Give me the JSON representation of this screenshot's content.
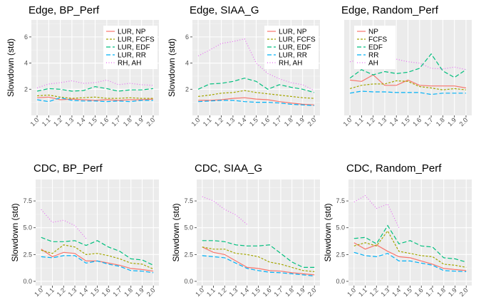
{
  "chart_data": [
    {
      "type": "line",
      "title": "Edge, BP_Perf",
      "ylabel": "Slowdown (std)",
      "xlabel": "",
      "x": [
        1.0,
        1.1,
        1.2,
        1.3,
        1.4,
        1.5,
        1.6,
        1.7,
        1.8,
        1.9,
        2.0
      ],
      "xticks": [
        "1.0",
        "1.1",
        "1.2",
        "1.3",
        "1.4",
        "1.5",
        "1.6",
        "1.7",
        "1.8",
        "1.9",
        "2.0"
      ],
      "ylim": [
        0,
        7.3
      ],
      "yticks": [
        2,
        4,
        6
      ],
      "legend": "top-right",
      "series": [
        {
          "name": "LUR, NP",
          "color": "#F8766D",
          "dash": "solid",
          "values": [
            1.35,
            1.4,
            1.2,
            1.25,
            1.2,
            1.15,
            1.2,
            1.15,
            1.2,
            1.2,
            1.25
          ]
        },
        {
          "name": "LUR, FCFS",
          "color": "#A3A500",
          "dash": "dashed",
          "values": [
            1.5,
            1.55,
            1.4,
            1.3,
            1.35,
            1.4,
            1.3,
            1.3,
            1.35,
            1.3,
            1.3
          ]
        },
        {
          "name": "LUR, EDF",
          "color": "#00BF7D",
          "dash": "longdash",
          "values": [
            1.85,
            2.05,
            2.0,
            1.85,
            1.9,
            2.2,
            2.05,
            1.85,
            1.95,
            1.95,
            2.05
          ]
        },
        {
          "name": "LUR, RR",
          "color": "#00B0F6",
          "dash": "longdash",
          "values": [
            1.2,
            1.05,
            1.35,
            1.15,
            1.1,
            1.1,
            1.05,
            1.1,
            1.05,
            1.15,
            1.15
          ]
        },
        {
          "name": "RH, AH",
          "color": "#E76BF3",
          "dash": "dotted",
          "values": [
            2.1,
            2.4,
            2.5,
            2.65,
            2.45,
            2.5,
            2.7,
            2.35,
            2.45,
            2.35,
            2.3
          ]
        }
      ]
    },
    {
      "type": "line",
      "title": "Edge, SIAA_G",
      "ylabel": "Slowdown (std)",
      "xlabel": "",
      "x": [
        1.0,
        1.1,
        1.2,
        1.3,
        1.4,
        1.5,
        1.6,
        1.7,
        1.8,
        1.9,
        2.0
      ],
      "xticks": [
        "1.0",
        "1.1",
        "1.2",
        "1.3",
        "1.4",
        "1.5",
        "1.6",
        "1.7",
        "1.8",
        "1.9",
        "2.0"
      ],
      "ylim": [
        0,
        7.3
      ],
      "yticks": [
        2,
        4,
        6
      ],
      "legend": "top-right",
      "series": [
        {
          "name": "LUR, NP",
          "color": "#F8766D",
          "dash": "solid",
          "values": [
            1.15,
            1.15,
            1.2,
            1.3,
            1.35,
            1.25,
            1.2,
            1.05,
            0.95,
            0.85,
            0.8
          ]
        },
        {
          "name": "LUR, FCFS",
          "color": "#A3A500",
          "dash": "dashed",
          "values": [
            1.45,
            1.55,
            1.7,
            1.75,
            1.9,
            1.75,
            1.65,
            1.55,
            1.45,
            1.35,
            1.3
          ]
        },
        {
          "name": "LUR, EDF",
          "color": "#00BF7D",
          "dash": "longdash",
          "values": [
            2.0,
            2.4,
            2.45,
            2.6,
            2.85,
            2.6,
            2.0,
            2.35,
            2.15,
            2.0,
            1.75
          ]
        },
        {
          "name": "LUR, RR",
          "color": "#00B0F6",
          "dash": "longdash",
          "values": [
            1.05,
            1.1,
            1.15,
            1.15,
            1.05,
            1.0,
            1.0,
            0.95,
            0.85,
            0.8,
            0.75
          ]
        },
        {
          "name": "RH, AH",
          "color": "#E76BF3",
          "dash": "dotted",
          "values": [
            4.55,
            5.0,
            5.5,
            5.65,
            5.85,
            4.0,
            3.2,
            2.8,
            2.5,
            2.35,
            1.9
          ]
        }
      ]
    },
    {
      "type": "line",
      "title": "Edge, Random_Perf",
      "ylabel": "",
      "xlabel": "",
      "x": [
        1.0,
        1.1,
        1.2,
        1.3,
        1.4,
        1.5,
        1.6,
        1.7,
        1.8,
        1.9,
        2.0
      ],
      "xticks": [
        "1.0",
        "1.1",
        "1.2",
        "1.3",
        "1.4",
        "1.5",
        "1.6",
        "1.7",
        "1.8",
        "1.9",
        "2.0"
      ],
      "ylim": [
        0,
        7.3
      ],
      "yticks": [],
      "legend": "top-left",
      "series": [
        {
          "name": "NP",
          "color": "#F8766D",
          "dash": "solid",
          "values": [
            2.7,
            2.6,
            3.1,
            2.3,
            2.3,
            2.7,
            2.3,
            2.25,
            2.25,
            2.25,
            2.1
          ]
        },
        {
          "name": "FCFS",
          "color": "#A3A500",
          "dash": "dashed",
          "values": [
            2.05,
            2.3,
            2.4,
            2.4,
            2.65,
            2.6,
            2.2,
            2.1,
            1.95,
            2.05,
            1.95
          ]
        },
        {
          "name": "EDF",
          "color": "#00BF7D",
          "dash": "longdash",
          "values": [
            2.85,
            3.5,
            3.1,
            3.35,
            3.2,
            3.3,
            3.6,
            4.7,
            3.4,
            2.9,
            3.5
          ]
        },
        {
          "name": "RR",
          "color": "#00B0F6",
          "dash": "longdash",
          "values": [
            1.7,
            1.85,
            1.8,
            1.8,
            1.75,
            1.75,
            1.75,
            1.6,
            1.7,
            1.7,
            1.7
          ]
        },
        {
          "name": "AH",
          "color": "#E76BF3",
          "dash": "dotted",
          "values": [
            4.1,
            4.3,
            4.5,
            4.5,
            4.3,
            4.1,
            4.0,
            3.6,
            3.55,
            3.7,
            3.5
          ]
        }
      ]
    },
    {
      "type": "line",
      "title": "CDC, BP_Perf",
      "ylabel": "Slowdown (std)",
      "xlabel": "",
      "x": [
        1.0,
        1.1,
        1.2,
        1.3,
        1.4,
        1.5,
        1.6,
        1.7,
        1.8,
        1.9,
        2.0
      ],
      "xticks": [
        "1.0",
        "1.1",
        "1.2",
        "1.3",
        "1.4",
        "1.5",
        "1.6",
        "1.7",
        "1.8",
        "1.9",
        "2.0"
      ],
      "ylim": [
        -0.4,
        9.5
      ],
      "yticks": [
        0.0,
        2.5,
        5.0,
        7.5
      ],
      "ytick_labels": [
        "0.0",
        "2.5",
        "5.0",
        "7.5"
      ],
      "legend": "none",
      "series": [
        {
          "name": "LUR, NP",
          "color": "#F8766D",
          "dash": "solid",
          "values": [
            3.0,
            2.3,
            2.7,
            2.6,
            1.9,
            1.9,
            1.7,
            1.5,
            1.2,
            1.1,
            0.95
          ]
        },
        {
          "name": "LUR, FCFS",
          "color": "#A3A500",
          "dash": "dashed",
          "values": [
            2.9,
            2.6,
            3.4,
            3.2,
            2.5,
            2.6,
            2.4,
            2.1,
            1.7,
            1.6,
            1.15
          ]
        },
        {
          "name": "LUR, EDF",
          "color": "#00BF7D",
          "dash": "longdash",
          "values": [
            4.1,
            3.7,
            3.7,
            3.8,
            3.35,
            3.8,
            3.2,
            2.8,
            2.1,
            2.0,
            1.5
          ]
        },
        {
          "name": "LUR, RR",
          "color": "#00B0F6",
          "dash": "longdash",
          "values": [
            2.3,
            2.2,
            2.4,
            2.4,
            1.7,
            1.9,
            1.6,
            1.4,
            1.0,
            0.95,
            0.8
          ]
        },
        {
          "name": "RH, AH",
          "color": "#E76BF3",
          "dash": "dotted",
          "values": [
            6.7,
            5.5,
            5.7,
            5.2,
            4.0,
            null,
            null,
            null,
            null,
            null,
            null
          ]
        }
      ]
    },
    {
      "type": "line",
      "title": "CDC, SIAA_G",
      "ylabel": "Slowdown (std)",
      "xlabel": "",
      "x": [
        1.0,
        1.1,
        1.2,
        1.3,
        1.4,
        1.5,
        1.6,
        1.7,
        1.8,
        1.9,
        2.0
      ],
      "xticks": [
        "1.0",
        "1.1",
        "1.2",
        "1.3",
        "1.4",
        "1.5",
        "1.6",
        "1.7",
        "1.8",
        "1.9",
        "2.0"
      ],
      "ylim": [
        -0.4,
        9.5
      ],
      "yticks": [
        0.0,
        2.5,
        5.0,
        7.5
      ],
      "ytick_labels": [
        "0.0",
        "2.5",
        "5.0",
        "7.5"
      ],
      "legend": "none",
      "series": [
        {
          "name": "LUR, NP",
          "color": "#F8766D",
          "dash": "solid",
          "values": [
            3.2,
            2.7,
            2.5,
            1.9,
            1.3,
            1.2,
            1.0,
            0.95,
            0.8,
            0.7,
            0.6
          ]
        },
        {
          "name": "LUR, FCFS",
          "color": "#A3A500",
          "dash": "dashed",
          "values": [
            3.2,
            3.0,
            3.0,
            2.6,
            2.5,
            2.3,
            1.8,
            1.6,
            1.3,
            1.0,
            0.9
          ]
        },
        {
          "name": "LUR, EDF",
          "color": "#00BF7D",
          "dash": "longdash",
          "values": [
            3.8,
            3.8,
            3.7,
            3.4,
            3.3,
            3.3,
            3.4,
            2.6,
            1.8,
            1.3,
            1.3
          ]
        },
        {
          "name": "LUR, RR",
          "color": "#00B0F6",
          "dash": "longdash",
          "values": [
            2.4,
            2.3,
            2.2,
            1.7,
            1.2,
            1.0,
            0.85,
            0.8,
            0.7,
            0.6,
            0.5
          ]
        },
        {
          "name": "RH, AH",
          "color": "#E76BF3",
          "dash": "dotted",
          "values": [
            7.9,
            7.5,
            6.7,
            6.2,
            5.3,
            null,
            null,
            null,
            null,
            null,
            null
          ]
        }
      ]
    },
    {
      "type": "line",
      "title": "CDC, Random_Perf",
      "ylabel": "Slowdown (std)",
      "xlabel": "",
      "x": [
        1.0,
        1.1,
        1.2,
        1.3,
        1.4,
        1.5,
        1.6,
        1.7,
        1.8,
        1.9,
        2.0
      ],
      "xticks": [
        "1.0",
        "1.1",
        "1.2",
        "1.3",
        "1.4",
        "1.5",
        "1.6",
        "1.7",
        "1.8",
        "1.9",
        "2.0"
      ],
      "ylim": [
        -0.4,
        9.5
      ],
      "yticks": [
        0.0,
        2.5,
        5.0,
        7.5
      ],
      "ytick_labels": [
        "0.0",
        "2.5",
        "5.0",
        "7.5"
      ],
      "legend": "none",
      "series": [
        {
          "name": "NP",
          "color": "#F8766D",
          "dash": "solid",
          "values": [
            3.6,
            3.0,
            3.4,
            2.8,
            2.3,
            2.2,
            1.9,
            1.6,
            1.2,
            1.1,
            1.0
          ]
        },
        {
          "name": "FCFS",
          "color": "#A3A500",
          "dash": "dashed",
          "values": [
            3.3,
            3.6,
            3.3,
            4.7,
            2.8,
            2.6,
            2.4,
            2.3,
            1.6,
            1.5,
            1.3
          ]
        },
        {
          "name": "EDF",
          "color": "#00BF7D",
          "dash": "longdash",
          "values": [
            4.0,
            4.1,
            3.5,
            5.2,
            3.5,
            3.8,
            3.3,
            3.2,
            2.2,
            2.1,
            1.8
          ]
        },
        {
          "name": "RR",
          "color": "#00B0F6",
          "dash": "longdash",
          "values": [
            2.7,
            2.4,
            2.3,
            2.6,
            1.9,
            1.9,
            1.7,
            1.5,
            1.0,
            0.95,
            0.9
          ]
        },
        {
          "name": "AH",
          "color": "#E76BF3",
          "dash": "dotted",
          "values": [
            7.4,
            8.0,
            6.8,
            7.2,
            5.0,
            null,
            null,
            null,
            null,
            null,
            null
          ]
        }
      ]
    }
  ]
}
